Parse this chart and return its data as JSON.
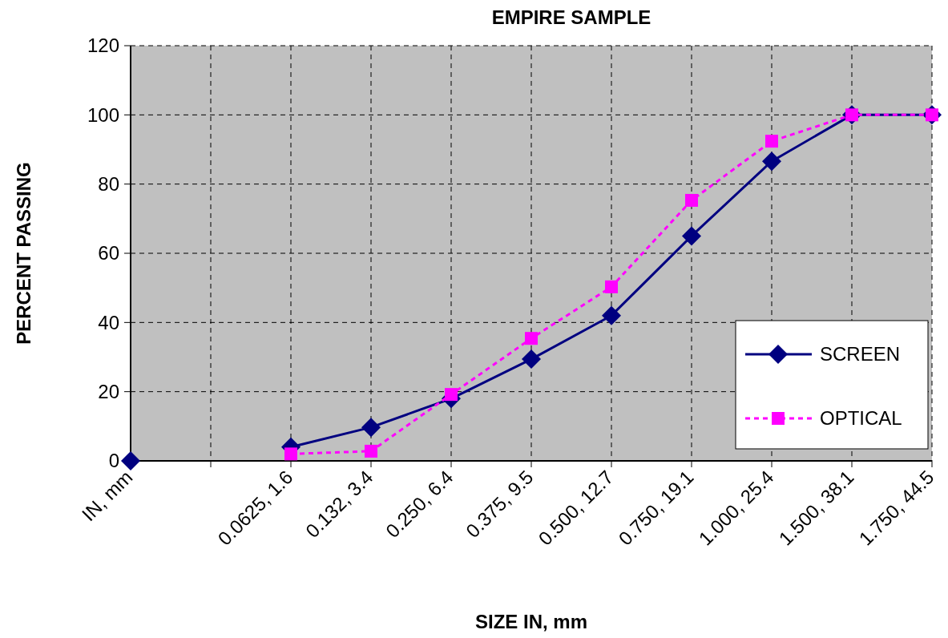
{
  "chart_data": {
    "type": "line",
    "title": "EMPIRE SAMPLE",
    "xlabel": "SIZE IN, mm",
    "ylabel": "PERCENT PASSING",
    "categories": [
      "IN, mm",
      null,
      "0.0625, 1.6",
      "0.132, 3.4",
      "0.250, 6.4",
      "0.375, 9.5",
      "0.500, 12.7",
      "0.750, 19.1",
      "1.000, 25.4",
      "1.500, 38.1",
      "1.750, 44.5"
    ],
    "series": [
      {
        "name": "SCREEN",
        "color": "#000080",
        "marker": "diamond",
        "line_style": "solid",
        "values": [
          0,
          null,
          4,
          9.7,
          18,
          29.4,
          42,
          65,
          86.6,
          100,
          100
        ]
      },
      {
        "name": "OPTICAL",
        "color": "#ff00ff",
        "marker": "square",
        "line_style": "dashed",
        "values": [
          null,
          null,
          2,
          2.8,
          19.2,
          35.4,
          50.3,
          75.3,
          92.4,
          100,
          100
        ]
      }
    ],
    "ylim": [
      0,
      120
    ],
    "yticks": [
      0,
      20,
      40,
      60,
      80,
      100,
      120
    ],
    "grid": true,
    "legend": "bottom right"
  }
}
